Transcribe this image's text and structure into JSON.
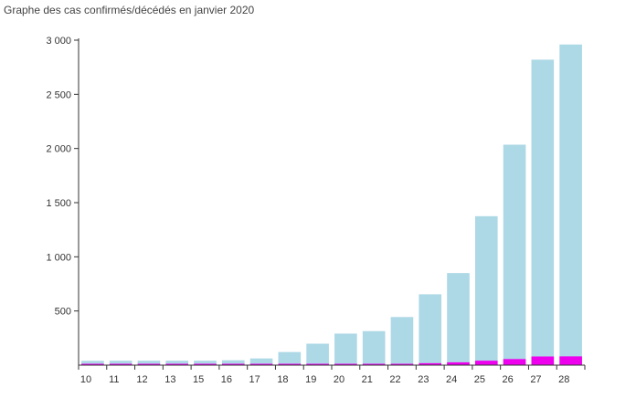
{
  "chart_data": {
    "type": "bar",
    "title": "Graphe des cas confirmés/décédés en janvier 2020",
    "xlabel": "",
    "ylabel": "",
    "categories": [
      "10",
      "11",
      "12",
      "13",
      "15",
      "16",
      "17",
      "18",
      "19",
      "20",
      "21",
      "22",
      "23",
      "24",
      "25",
      "26",
      "27",
      "28"
    ],
    "series": [
      {
        "values": [
          40,
          41,
          41,
          41,
          41,
          45,
          62,
          121,
          198,
          291,
          314,
          444,
          654,
          850,
          1375,
          2035,
          2820,
          2960
        ],
        "color": "#add8e6"
      },
      {
        "values": [
          1,
          1,
          1,
          1,
          1,
          2,
          2,
          2,
          3,
          6,
          6,
          9,
          18,
          26,
          41,
          56,
          80,
          81
        ],
        "color": "#ee00ee"
      }
    ],
    "ylim": [
      0,
      3000
    ],
    "yticks": [
      500,
      1000,
      1500,
      2000,
      2500,
      3000
    ],
    "ytick_labels": [
      "500",
      "1 000",
      "1 500",
      "2 000",
      "2 500",
      "3 000"
    ],
    "grid": false,
    "axis_color": "#333333"
  }
}
